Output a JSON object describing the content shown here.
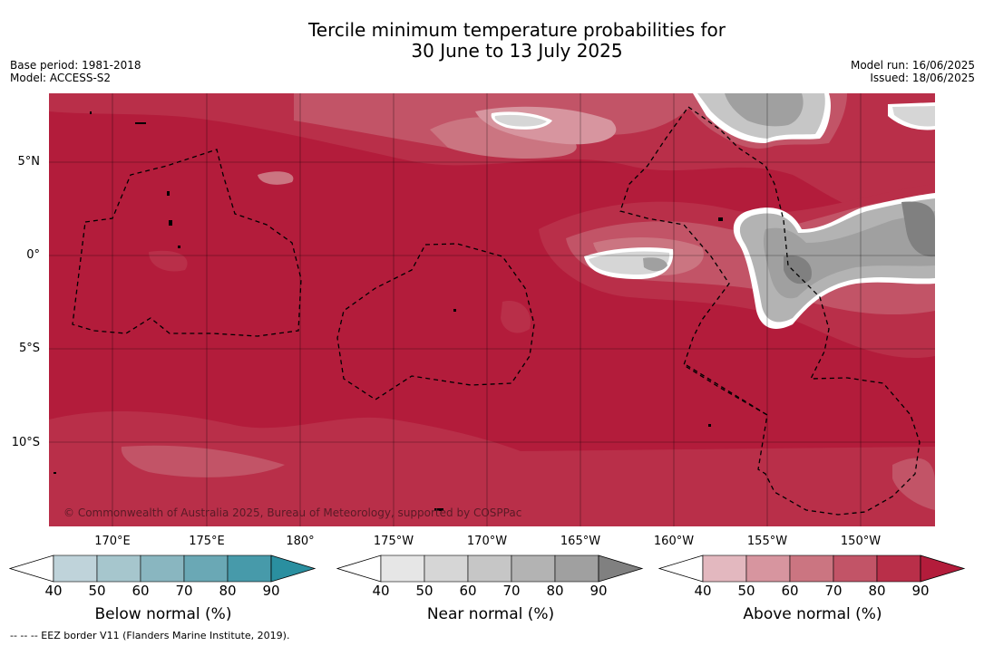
{
  "title_line1": "Tercile minimum temperature probabilities for",
  "title_line2": "30 June to 13 July 2025",
  "base_period": "Base period: 1981-2018",
  "model": "Model: ACCESS-S2",
  "model_run": "Model run: 16/06/2025",
  "issued": "Issued: 18/06/2025",
  "copyright": "© Commonwealth of Australia 2025, Bureau of Meteorology, supported by COSPPac",
  "lat_labels": [
    "5°N",
    "0°",
    "5°S",
    "10°S"
  ],
  "lon_labels": [
    "170°E",
    "175°E",
    "180°",
    "175°W",
    "170°W",
    "165°W",
    "160°W",
    "155°W",
    "150°W"
  ],
  "colorbars": [
    {
      "title": "Below normal (%)",
      "ticks": [
        "40",
        "50",
        "60",
        "70",
        "80",
        "90"
      ],
      "colors": [
        "#bfd3da",
        "#a6c6cd",
        "#89b6c0",
        "#6aa8b5",
        "#479aaa",
        "#2a8fa0"
      ]
    },
    {
      "title": "Near normal (%)",
      "ticks": [
        "40",
        "50",
        "60",
        "70",
        "80",
        "90"
      ],
      "colors": [
        "#e6e6e6",
        "#d6d6d6",
        "#c6c6c6",
        "#b3b3b3",
        "#a0a0a0",
        "#808080"
      ]
    },
    {
      "title": "Above normal (%)",
      "ticks": [
        "40",
        "50",
        "60",
        "70",
        "80",
        "90"
      ],
      "colors": [
        "#e3b8bf",
        "#d7959f",
        "#cb7581",
        "#c25467",
        "#b92f49",
        "#b31c3b"
      ]
    }
  ],
  "footnote": "--  --  -- EEZ border V11 (Flanders Marine Institute, 2019)."
}
